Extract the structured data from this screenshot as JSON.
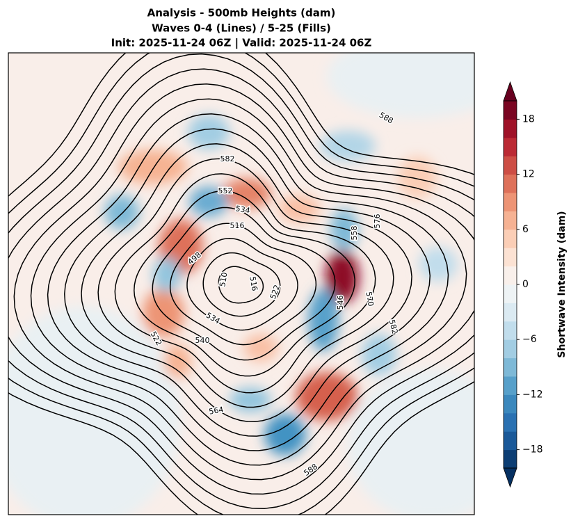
{
  "chart_data": {
    "type": "contour_map",
    "title": [
      "Analysis - 500mb Heights (dam)",
      "Waves 0-4 (Lines) / 5-25 (Fills)",
      "Init: 2025-11-24 06Z | Valid: 2025-11-24 06Z"
    ],
    "contour_labels": [
      588,
      582,
      552,
      534,
      516,
      498,
      510,
      516,
      522,
      534,
      540,
      522,
      546,
      570,
      582,
      558,
      576,
      564,
      588
    ],
    "colorbar": {
      "label": "Shortwave Intensity (dam)",
      "colormap": "RdBu_r",
      "levels": [
        -20,
        -18,
        -16,
        -14,
        -12,
        -10,
        -8,
        -6,
        -4,
        -2,
        0,
        2,
        4,
        6,
        8,
        10,
        12,
        14,
        16,
        18,
        20
      ],
      "ylim": [
        -20,
        20
      ],
      "yticks": [
        {
          "value": -18,
          "label": "−18"
        },
        {
          "value": -12,
          "label": "−12"
        },
        {
          "value": -6,
          "label": "−6"
        },
        0,
        6,
        12,
        18
      ],
      "extend": "both"
    }
  }
}
